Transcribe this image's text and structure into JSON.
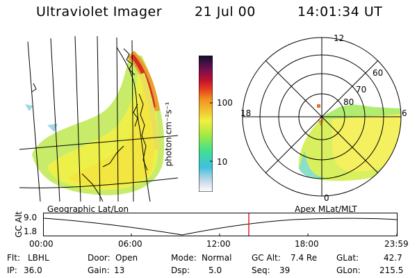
{
  "header": {
    "instrument": "Ultraviolet Imager",
    "date": "21 Jul 00",
    "time": "14:01:34 UT"
  },
  "colorbar": {
    "units": "photon cm⁻²s⁻¹",
    "tick_100": "100",
    "tick_10": "10"
  },
  "polar": {
    "label_12": "12",
    "label_18": "18",
    "label_6": "6",
    "label_0": "0",
    "lat_60": "60",
    "lat_70": "70",
    "lat_80": "80"
  },
  "panels": {
    "left_label": "Geographic Lat/Lon",
    "right_label": "Apex MLat/MLT"
  },
  "timeline": {
    "y_label": "GC Alt",
    "y_max": "9.0",
    "y_min": "1.8",
    "ticks": [
      "00:00",
      "06:00",
      "12:00",
      "18:00",
      "23:59"
    ]
  },
  "info": {
    "filter_label": "Flt:",
    "filter_value": "LBHL",
    "ip_label": "IP:",
    "ip_value": "36.0",
    "door_label": "Door:",
    "door_value": "Open",
    "gain_label": "Gain:",
    "gain_value": "13",
    "mode_label": "Mode:",
    "mode_value": "Normal",
    "dsp_label": "Dsp:",
    "dsp_value": "5.0",
    "gcalt_label": "GC Alt:",
    "gcalt_value": "7.4 Re",
    "seq_label": "Seq:",
    "seq_value": "39",
    "glat_label": "GLat:",
    "glat_value": "42.7",
    "glon_label": "GLon:",
    "glon_value": "215.5"
  }
}
